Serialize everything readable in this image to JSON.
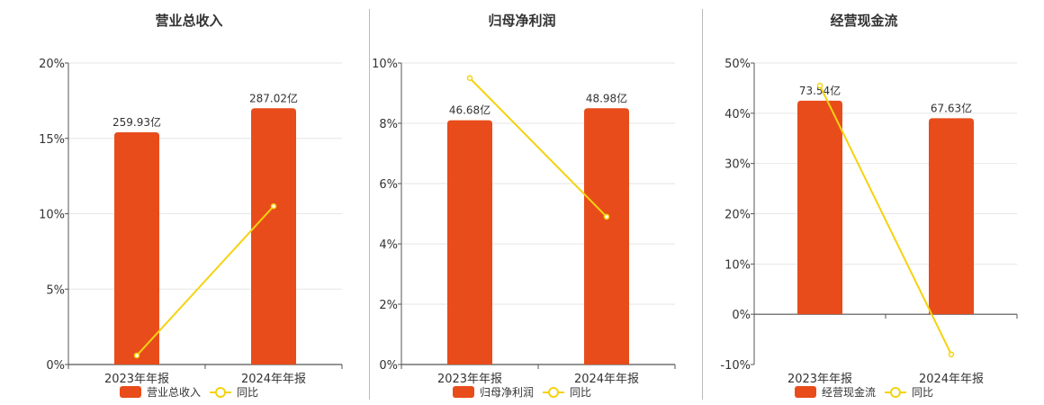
{
  "colors": {
    "bar": "#e84c1b",
    "line": "#f5d20f",
    "grid": "#e6e6e6",
    "axis": "#555555",
    "divider": "#bbbbbb"
  },
  "chart_data": [
    {
      "type": "bar",
      "title": "营业总收入",
      "categories": [
        "2023年年报",
        "2024年年报"
      ],
      "series": [
        {
          "name": "营业总收入",
          "type": "bar",
          "values": [
            15.4,
            17.0
          ],
          "labels": [
            "259.93亿",
            "287.02亿"
          ]
        },
        {
          "name": "同比",
          "type": "line",
          "values": [
            0.6,
            10.5
          ]
        }
      ],
      "yticks": [
        "0%",
        "5%",
        "10%",
        "15%",
        "20%"
      ],
      "ylim": [
        0,
        20
      ],
      "grid": true,
      "legend": "bottom-center"
    },
    {
      "type": "bar",
      "title": "归母净利润",
      "categories": [
        "2023年年报",
        "2024年年报"
      ],
      "series": [
        {
          "name": "归母净利润",
          "type": "bar",
          "values": [
            8.1,
            8.5
          ],
          "labels": [
            "46.68亿",
            "48.98亿"
          ]
        },
        {
          "name": "同比",
          "type": "line",
          "values": [
            9.5,
            4.9
          ]
        }
      ],
      "yticks": [
        "0%",
        "2%",
        "4%",
        "6%",
        "8%",
        "10%"
      ],
      "ylim": [
        0,
        10
      ],
      "grid": true,
      "legend": "bottom-center"
    },
    {
      "type": "bar",
      "title": "经营现金流",
      "categories": [
        "2023年年报",
        "2024年年报"
      ],
      "series": [
        {
          "name": "经营现金流",
          "type": "bar",
          "values": [
            42.5,
            39.0
          ],
          "labels": [
            "73.54亿",
            "67.63亿"
          ]
        },
        {
          "name": "同比",
          "type": "line",
          "values": [
            45.5,
            -8.0
          ]
        }
      ],
      "yticks": [
        "-10%",
        "0%",
        "10%",
        "20%",
        "30%",
        "40%",
        "50%"
      ],
      "ylim": [
        -10,
        50
      ],
      "grid": true,
      "legend": "bottom-center"
    }
  ]
}
